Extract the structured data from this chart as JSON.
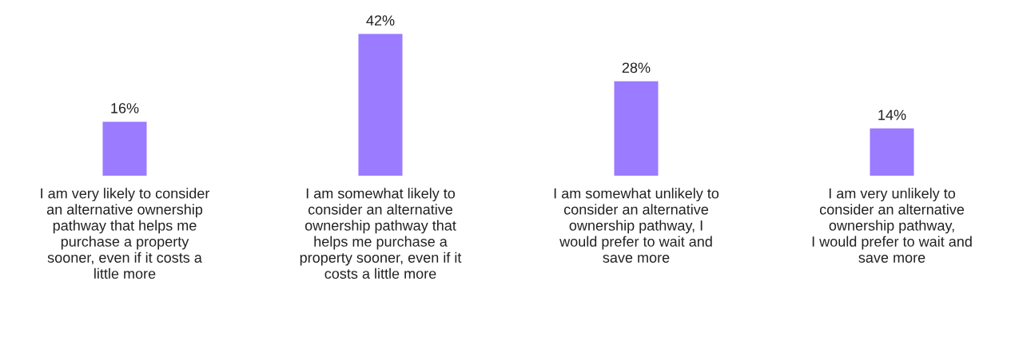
{
  "chart_data": {
    "type": "bar",
    "categories": [
      "I am very likely to consider\nan alternative ownership\npathway that helps me\npurchase a property\nsooner, even if it costs a\nlittle more",
      "I am somewhat likely to\nconsider an alternative\nownership pathway that\nhelps me purchase a\nproperty sooner, even if it\ncosts a little more",
      "I am somewhat unlikely to\nconsider an alternative\nownership pathway, I\nwould prefer to wait and\nsave more",
      "I am very unlikely to\nconsider an alternative\nownership pathway,\nI would prefer to wait and\nsave more"
    ],
    "values": [
      16,
      42,
      28,
      14
    ],
    "value_labels": [
      "16%",
      "42%",
      "28%",
      "14%"
    ],
    "color": "#9b7bff"
  }
}
